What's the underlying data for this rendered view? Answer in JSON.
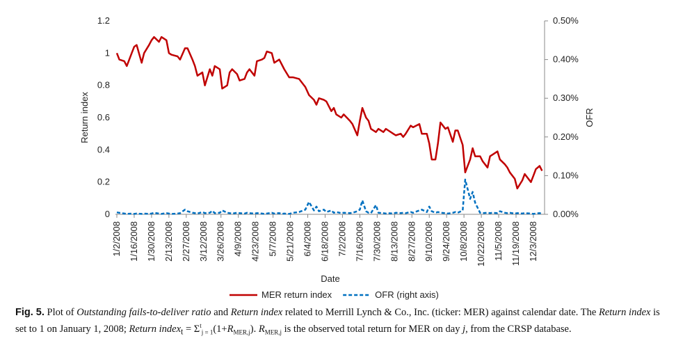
{
  "chart_data": {
    "type": "line",
    "xlabel": "Date",
    "ylabel": "Return index",
    "y2label": "OFR",
    "x": [
      "1/2/2008",
      "1/4/2008",
      "1/8/2008",
      "1/10/2008",
      "1/14/2008",
      "1/16/2008",
      "1/18/2008",
      "1/22/2008",
      "1/24/2008",
      "1/28/2008",
      "1/30/2008",
      "2/1/2008",
      "2/5/2008",
      "2/7/2008",
      "2/11/2008",
      "2/13/2008",
      "2/15/2008",
      "2/20/2008",
      "2/22/2008",
      "2/26/2008",
      "2/28/2008",
      "3/3/2008",
      "3/5/2008",
      "3/7/2008",
      "3/11/2008",
      "3/13/2008",
      "3/17/2008",
      "3/19/2008",
      "3/21/2008",
      "3/25/2008",
      "3/27/2008",
      "3/31/2008",
      "4/2/2008",
      "4/4/2008",
      "4/8/2008",
      "4/10/2008",
      "4/14/2008",
      "4/16/2008",
      "4/18/2008",
      "4/22/2008",
      "4/24/2008",
      "4/28/2008",
      "4/30/2008",
      "5/2/2008",
      "5/6/2008",
      "5/8/2008",
      "5/12/2008",
      "5/14/2008",
      "5/16/2008",
      "5/20/2008",
      "5/23/2008",
      "5/28/2008",
      "6/2/2008",
      "6/5/2008",
      "6/9/2008",
      "6/11/2008",
      "6/13/2008",
      "6/17/2008",
      "6/19/2008",
      "6/23/2008",
      "6/25/2008",
      "6/27/2008",
      "7/1/2008",
      "7/3/2008",
      "7/8/2008",
      "7/10/2008",
      "7/14/2008",
      "7/16/2008",
      "7/18/2008",
      "7/21/2008",
      "7/23/2008",
      "7/25/2008",
      "7/29/2008",
      "7/31/2008",
      "8/4/2008",
      "8/6/2008",
      "8/8/2008",
      "8/12/2008",
      "8/14/2008",
      "8/18/2008",
      "8/20/2008",
      "8/22/2008",
      "8/26/2008",
      "8/28/2008",
      "9/2/2008",
      "9/4/2008",
      "9/8/2008",
      "9/10/2008",
      "9/12/2008",
      "9/15/2008",
      "9/17/2008",
      "9/19/2008",
      "9/23/2008",
      "9/25/2008",
      "9/29/2008",
      "10/1/2008",
      "10/3/2008",
      "10/7/2008",
      "10/9/2008",
      "10/13/2008",
      "10/15/2008",
      "10/17/2008",
      "10/21/2008",
      "10/23/2008",
      "10/27/2008",
      "10/29/2008",
      "10/31/2008",
      "11/4/2008",
      "11/6/2008",
      "11/10/2008",
      "11/12/2008",
      "11/14/2008",
      "11/18/2008",
      "11/20/2008",
      "11/24/2008",
      "11/26/2008",
      "12/1/2008",
      "12/3/2008",
      "12/5/2008",
      "12/8/2008",
      "12/10/2008"
    ],
    "xlim": [
      "1/2/2008",
      "12/12/2008"
    ],
    "xticks": [
      "1/2/2008",
      "1/16/2008",
      "1/30/2008",
      "2/13/2008",
      "2/27/2008",
      "3/12/2008",
      "3/26/2008",
      "4/9/2008",
      "4/23/2008",
      "5/7/2008",
      "5/21/2008",
      "6/4/2008",
      "6/18/2008",
      "7/2/2008",
      "7/16/2008",
      "7/30/2008",
      "8/13/2008",
      "8/27/2008",
      "9/10/2008",
      "9/24/2008",
      "10/8/2008",
      "10/22/2008",
      "11/5/2008",
      "11/19/2008",
      "12/3/2008"
    ],
    "ylim": [
      0,
      1.2
    ],
    "yticks": [
      0,
      0.2,
      0.4,
      0.6,
      0.8,
      1,
      1.2
    ],
    "y2lim": [
      0,
      0.5
    ],
    "y2ticks": [
      {
        "value": 0,
        "label": "0.00%"
      },
      {
        "value": 0.1,
        "label": "0.10%"
      },
      {
        "value": 0.2,
        "label": "0.20%"
      },
      {
        "value": 0.3,
        "label": "0.30%"
      },
      {
        "value": 0.4,
        "label": "0.40%"
      },
      {
        "value": 0.5,
        "label": "0.50%"
      }
    ],
    "legend": "bottom",
    "series": [
      {
        "name": "MER return index",
        "color": "#c00000",
        "style": "solid",
        "values": [
          1.0,
          0.96,
          0.95,
          0.92,
          1.0,
          1.04,
          1.05,
          0.94,
          1.0,
          1.05,
          1.08,
          1.1,
          1.07,
          1.1,
          1.08,
          1.0,
          0.99,
          0.98,
          0.96,
          1.03,
          1.03,
          0.96,
          0.92,
          0.86,
          0.88,
          0.8,
          0.9,
          0.86,
          0.92,
          0.9,
          0.78,
          0.8,
          0.88,
          0.9,
          0.87,
          0.83,
          0.84,
          0.88,
          0.9,
          0.86,
          0.95,
          0.96,
          0.97,
          1.01,
          1.0,
          0.94,
          0.96,
          0.93,
          0.9,
          0.85,
          0.85,
          0.84,
          0.79,
          0.74,
          0.71,
          0.68,
          0.72,
          0.71,
          0.7,
          0.64,
          0.66,
          0.62,
          0.6,
          0.62,
          0.58,
          0.56,
          0.49,
          0.58,
          0.66,
          0.6,
          0.58,
          0.53,
          0.51,
          0.53,
          0.51,
          0.53,
          0.52,
          0.5,
          0.49,
          0.5,
          0.48,
          0.5,
          0.55,
          0.54,
          0.56,
          0.5,
          0.5,
          0.44,
          0.34,
          0.34,
          0.44,
          0.57,
          0.53,
          0.54,
          0.45,
          0.52,
          0.52,
          0.43,
          0.26,
          0.34,
          0.41,
          0.36,
          0.36,
          0.33,
          0.29,
          0.36,
          0.37,
          0.39,
          0.34,
          0.31,
          0.29,
          0.26,
          0.22,
          0.16,
          0.21,
          0.25,
          0.2,
          0.24,
          0.28,
          0.3,
          0.27
        ]
      },
      {
        "name": "OFR (right axis)",
        "color": "#0070c0",
        "style": "dashed",
        "axis": "y2",
        "values": [
          0.005,
          0.004,
          0.002,
          0.001,
          0.002,
          0.001,
          0.002,
          0.001,
          0.002,
          0.001,
          0.002,
          0.004,
          0.002,
          0.001,
          0.003,
          0.002,
          0.001,
          0.002,
          0.003,
          0.012,
          0.008,
          0.004,
          0.003,
          0.002,
          0.006,
          0.003,
          0.004,
          0.009,
          0.003,
          0.004,
          0.01,
          0.004,
          0.003,
          0.002,
          0.004,
          0.003,
          0.002,
          0.004,
          0.003,
          0.002,
          0.003,
          0.002,
          0.001,
          0.002,
          0.004,
          0.002,
          0.003,
          0.001,
          0.002,
          0.001,
          0.004,
          0.006,
          0.012,
          0.032,
          0.01,
          0.02,
          0.008,
          0.012,
          0.006,
          0.01,
          0.004,
          0.006,
          0.003,
          0.004,
          0.003,
          0.004,
          0.008,
          0.012,
          0.036,
          0.008,
          0.004,
          0.003,
          0.024,
          0.004,
          0.003,
          0.002,
          0.003,
          0.002,
          0.004,
          0.003,
          0.004,
          0.003,
          0.006,
          0.004,
          0.01,
          0.012,
          0.006,
          0.02,
          0.008,
          0.004,
          0.006,
          0.004,
          0.003,
          0.002,
          0.004,
          0.006,
          0.004,
          0.01,
          0.09,
          0.04,
          0.058,
          0.03,
          0.004,
          0.003,
          0.004,
          0.003,
          0.004,
          0.003,
          0.008,
          0.004,
          0.003,
          0.004,
          0.002,
          0.003,
          0.002,
          0.003,
          0.002,
          0.001,
          0.002,
          0.003,
          0.002
        ]
      }
    ]
  },
  "caption": {
    "label": "Fig. 5.",
    "parts": [
      " Plot of ",
      "Outstanding fails-to-deliver ratio",
      " and ",
      "Return index",
      " related to Merrill Lynch & Co., Inc. (ticker: MER) against calendar date. The ",
      "Return index",
      " is set to 1 on January 1, 2008; ",
      "Return index",
      "t",
      " = Σ",
      "t",
      "j = 1",
      "(1+",
      "R",
      "MER,j",
      "). ",
      "R",
      "MER,j",
      " is the observed total return for MER on day ",
      "j",
      ", from the CRSP database."
    ]
  }
}
